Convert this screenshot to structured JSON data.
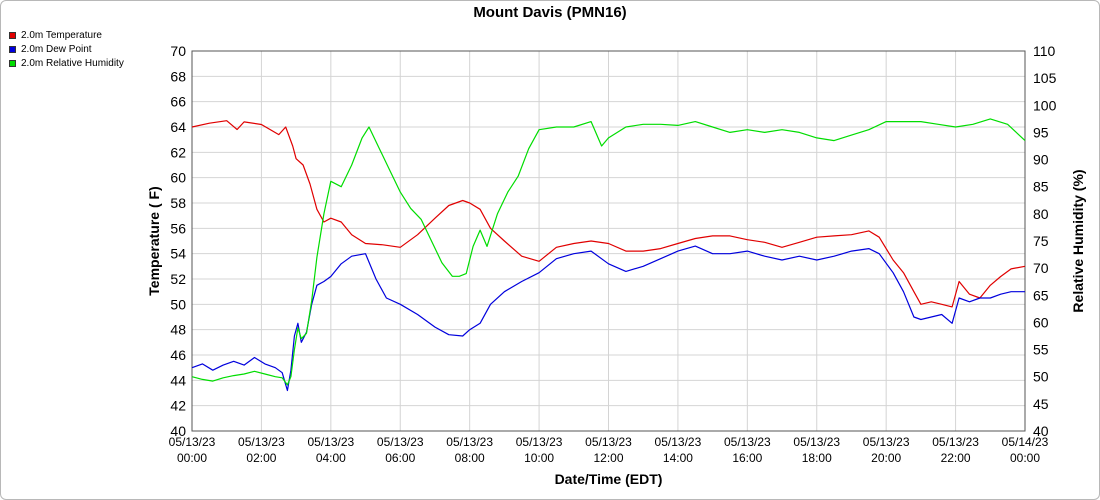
{
  "chart_data": {
    "type": "line",
    "title": "Mount Davis (PMN16)",
    "xlabel": "Date/Time (EDT)",
    "ylabel_left": "Temperature ( F)",
    "ylabel_right": "Relative Humidity (%)",
    "grid": true,
    "legend_placement": "top-left",
    "ylim_left": [
      40,
      70
    ],
    "yticks_left": [
      40,
      42,
      44,
      46,
      48,
      50,
      52,
      54,
      56,
      58,
      60,
      62,
      64,
      66,
      68,
      70
    ],
    "ylim_right": [
      40,
      110
    ],
    "yticks_right": [
      40,
      45,
      50,
      55,
      60,
      65,
      70,
      75,
      80,
      85,
      90,
      95,
      100,
      105,
      110
    ],
    "xlim_hours": [
      0,
      24
    ],
    "x_ticks": [
      {
        "h": 0,
        "date": "05/13/23",
        "time": "00:00"
      },
      {
        "h": 2,
        "date": "05/13/23",
        "time": "02:00"
      },
      {
        "h": 4,
        "date": "05/13/23",
        "time": "04:00"
      },
      {
        "h": 6,
        "date": "05/13/23",
        "time": "06:00"
      },
      {
        "h": 8,
        "date": "05/13/23",
        "time": "08:00"
      },
      {
        "h": 10,
        "date": "05/13/23",
        "time": "10:00"
      },
      {
        "h": 12,
        "date": "05/13/23",
        "time": "12:00"
      },
      {
        "h": 14,
        "date": "05/13/23",
        "time": "14:00"
      },
      {
        "h": 16,
        "date": "05/13/23",
        "time": "16:00"
      },
      {
        "h": 18,
        "date": "05/13/23",
        "time": "18:00"
      },
      {
        "h": 20,
        "date": "05/13/23",
        "time": "20:00"
      },
      {
        "h": 22,
        "date": "05/13/23",
        "time": "22:00"
      },
      {
        "h": 24,
        "date": "05/14/23",
        "time": "00:00"
      }
    ],
    "series": [
      {
        "name": "2.0m Temperature",
        "color": "#e00000",
        "axis": "left",
        "x_hours": [
          0,
          0.5,
          1,
          1.3,
          1.5,
          2,
          2.5,
          2.7,
          2.9,
          3.0,
          3.2,
          3.4,
          3.6,
          3.8,
          4.0,
          4.3,
          4.6,
          5.0,
          5.5,
          6.0,
          6.5,
          7.0,
          7.4,
          7.8,
          8.0,
          8.3,
          8.6,
          9.0,
          9.5,
          10.0,
          10.5,
          11.0,
          11.5,
          12.0,
          12.5,
          13.0,
          13.5,
          14.0,
          14.5,
          15.0,
          15.5,
          16.0,
          16.5,
          17.0,
          17.5,
          18.0,
          18.5,
          19.0,
          19.5,
          19.8,
          20.2,
          20.5,
          20.8,
          21.0,
          21.3,
          21.6,
          21.9,
          22.1,
          22.4,
          22.7,
          23.0,
          23.3,
          23.6,
          24.0
        ],
        "values": [
          64.0,
          64.3,
          64.5,
          63.8,
          64.4,
          64.2,
          63.4,
          64.0,
          62.5,
          61.5,
          61.0,
          59.5,
          57.5,
          56.5,
          56.8,
          56.5,
          55.5,
          54.8,
          54.7,
          54.5,
          55.5,
          56.8,
          57.8,
          58.2,
          58.0,
          57.5,
          56.0,
          55.0,
          53.8,
          53.4,
          54.5,
          54.8,
          55.0,
          54.8,
          54.2,
          54.2,
          54.4,
          54.8,
          55.2,
          55.4,
          55.4,
          55.1,
          54.9,
          54.5,
          54.9,
          55.3,
          55.4,
          55.5,
          55.8,
          55.3,
          53.5,
          52.5,
          51.0,
          50.0,
          50.2,
          50.0,
          49.8,
          51.8,
          50.8,
          50.5,
          51.5,
          52.2,
          52.8,
          53.0
        ]
      },
      {
        "name": "2.0m Dew Point",
        "color": "#0000dd",
        "axis": "left",
        "x_hours": [
          0,
          0.3,
          0.6,
          0.9,
          1.2,
          1.5,
          1.8,
          2.1,
          2.4,
          2.6,
          2.75,
          2.85,
          2.95,
          3.05,
          3.15,
          3.3,
          3.45,
          3.6,
          3.8,
          4.0,
          4.3,
          4.6,
          5.0,
          5.3,
          5.6,
          6.0,
          6.5,
          7.0,
          7.4,
          7.8,
          8.0,
          8.3,
          8.6,
          9.0,
          9.5,
          10.0,
          10.5,
          11.0,
          11.5,
          12.0,
          12.5,
          13.0,
          13.5,
          14.0,
          14.5,
          15.0,
          15.5,
          16.0,
          16.5,
          17.0,
          17.5,
          18.0,
          18.5,
          19.0,
          19.5,
          19.8,
          20.2,
          20.5,
          20.8,
          21.0,
          21.3,
          21.6,
          21.9,
          22.1,
          22.4,
          22.7,
          23.0,
          23.3,
          23.6,
          24.0
        ],
        "values": [
          45.0,
          45.3,
          44.8,
          45.2,
          45.5,
          45.2,
          45.8,
          45.3,
          45.0,
          44.6,
          43.2,
          44.8,
          47.5,
          48.5,
          47.0,
          47.8,
          50.0,
          51.5,
          51.8,
          52.2,
          53.2,
          53.8,
          54.0,
          52.0,
          50.5,
          50.0,
          49.2,
          48.2,
          47.6,
          47.5,
          48.0,
          48.5,
          50.0,
          51.0,
          51.8,
          52.5,
          53.6,
          54.0,
          54.2,
          53.2,
          52.6,
          53.0,
          53.6,
          54.2,
          54.6,
          54.0,
          54.0,
          54.2,
          53.8,
          53.5,
          53.8,
          53.5,
          53.8,
          54.2,
          54.4,
          54.0,
          52.5,
          51.0,
          49.0,
          48.8,
          49.0,
          49.2,
          48.5,
          50.5,
          50.2,
          50.5,
          50.5,
          50.8,
          51.0,
          51.0
        ]
      },
      {
        "name": "2.0m Relative Humidity",
        "color": "#00dd00",
        "axis": "right",
        "x_hours": [
          0,
          0.3,
          0.6,
          0.9,
          1.2,
          1.5,
          1.8,
          2.1,
          2.4,
          2.6,
          2.75,
          2.85,
          2.95,
          3.05,
          3.15,
          3.3,
          3.45,
          3.6,
          3.8,
          4.0,
          4.3,
          4.6,
          4.9,
          5.1,
          5.4,
          5.7,
          6.0,
          6.3,
          6.6,
          6.9,
          7.2,
          7.5,
          7.7,
          7.9,
          8.1,
          8.3,
          8.5,
          8.8,
          9.1,
          9.4,
          9.7,
          10.0,
          10.5,
          11.0,
          11.5,
          11.8,
          12.0,
          12.5,
          13.0,
          13.5,
          14.0,
          14.5,
          15.0,
          15.5,
          16.0,
          16.5,
          17.0,
          17.5,
          18.0,
          18.5,
          19.0,
          19.5,
          20.0,
          20.5,
          21.0,
          21.5,
          22.0,
          22.5,
          23.0,
          23.5,
          24.0
        ],
        "values": [
          50.0,
          49.5,
          49.2,
          49.8,
          50.2,
          50.5,
          51.0,
          50.5,
          50.0,
          49.8,
          48.5,
          50.0,
          55.0,
          59.0,
          57.0,
          58.0,
          64.0,
          72.0,
          80.0,
          86.0,
          85.0,
          89.0,
          94.0,
          96.0,
          92.0,
          88.0,
          84.0,
          81.0,
          79.0,
          75.0,
          71.0,
          68.5,
          68.5,
          69.0,
          74.0,
          77.0,
          74.0,
          80.0,
          84.0,
          87.0,
          92.0,
          95.5,
          96.0,
          96.0,
          97.0,
          92.5,
          94.0,
          96.0,
          96.5,
          96.5,
          96.3,
          97.0,
          96.0,
          95.0,
          95.5,
          95.0,
          95.5,
          95.0,
          94.0,
          93.5,
          94.5,
          95.5,
          97.0,
          97.0,
          97.0,
          96.5,
          96.0,
          96.5,
          97.5,
          96.5,
          93.5
        ]
      }
    ]
  }
}
